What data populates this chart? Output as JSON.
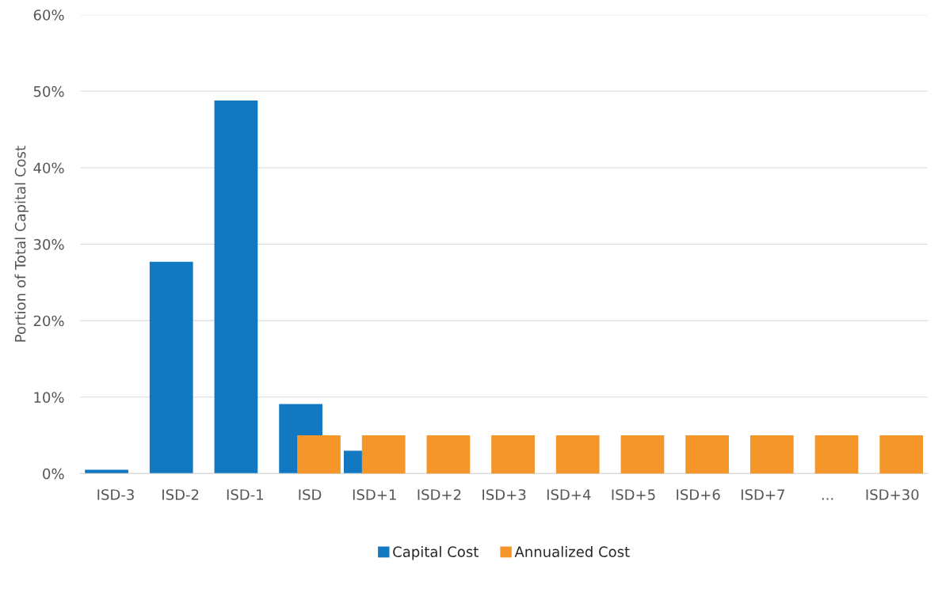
{
  "chart_data": {
    "type": "bar",
    "ylabel": "Portion of Total Capital Cost",
    "categories": [
      "ISD-3",
      "ISD-2",
      "ISD-1",
      "ISD",
      "ISD+1",
      "ISD+2",
      "ISD+3",
      "ISD+4",
      "ISD+5",
      "ISD+6",
      "ISD+7",
      "...",
      "ISD+30"
    ],
    "series": [
      {
        "name": "Capital Cost",
        "color": "#1278c2",
        "values": [
          0.5,
          27.7,
          48.8,
          9.1,
          3.0,
          null,
          null,
          null,
          null,
          null,
          null,
          null,
          null
        ]
      },
      {
        "name": "Annualized Cost",
        "color": "#f5962a",
        "values": [
          null,
          null,
          null,
          5.0,
          5.0,
          5.0,
          5.0,
          5.0,
          5.0,
          5.0,
          5.0,
          5.0,
          5.0
        ]
      }
    ],
    "ylim": [
      0,
      60
    ],
    "yticks": [
      {
        "value": 0,
        "label": "0%"
      },
      {
        "value": 10,
        "label": "10%"
      },
      {
        "value": 20,
        "label": "20%"
      },
      {
        "value": 30,
        "label": "30%"
      },
      {
        "value": 40,
        "label": "40%"
      },
      {
        "value": 50,
        "label": "50%"
      },
      {
        "value": 60,
        "label": "60%"
      }
    ],
    "grid": "y",
    "legend": "bottom"
  }
}
